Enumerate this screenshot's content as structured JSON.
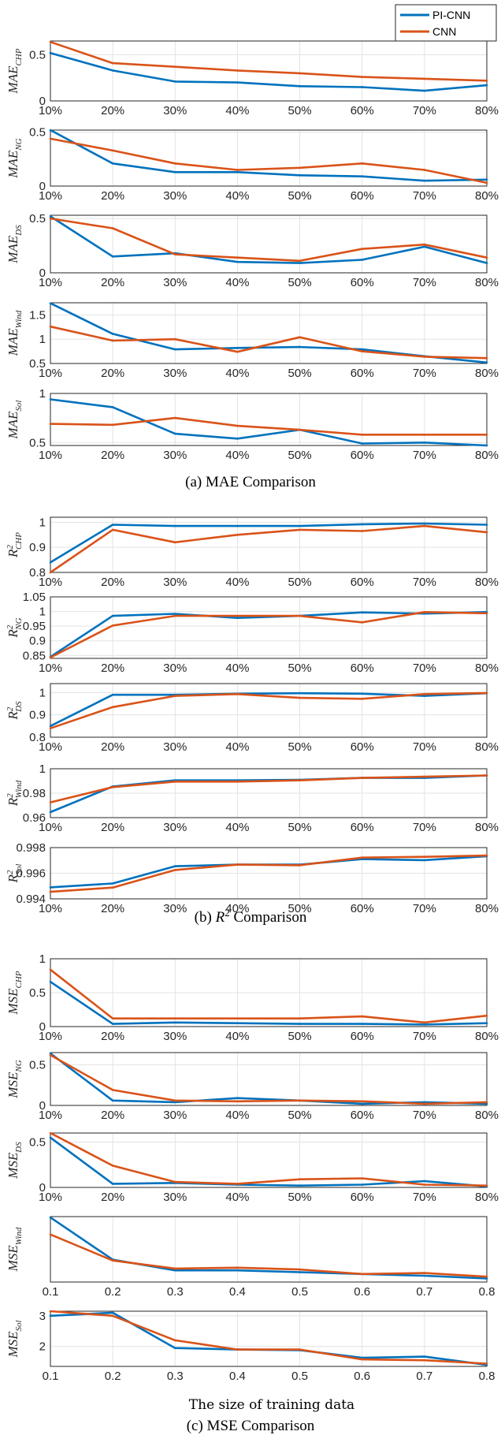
{
  "legend": {
    "entries": [
      {
        "name": "PI-CNN",
        "color": "#0072BD"
      },
      {
        "name": "CNN",
        "color": "#D95319"
      }
    ],
    "placement": "top-right"
  },
  "colors": {
    "pi_cnn": "#0072BD",
    "cnn": "#D95319",
    "grid": "#e3e3e3",
    "axis": "#262626"
  },
  "captions": {
    "mae": "(a) MAE Comparison",
    "r2_prefix": "(b) ",
    "r2_symbol": "R",
    "r2_sup": "2",
    "r2_suffix": " Comparison",
    "mse": "(c) MSE Comparison",
    "xlabel": "The size of training data"
  },
  "chart_data": [
    {
      "type": "line",
      "group": "mae",
      "ylabel": "MAE",
      "ylabel_sub": "CHP",
      "ylim": [
        0,
        0.65
      ],
      "yticks": [
        "0",
        "0.5"
      ],
      "ytick_vals": [
        0,
        0.5
      ],
      "grid": true,
      "x": [
        "10%",
        "20%",
        "30%",
        "40%",
        "50%",
        "60%",
        "70%",
        "80%"
      ],
      "series": [
        {
          "name": "PI-CNN",
          "values": [
            0.52,
            0.33,
            0.21,
            0.2,
            0.16,
            0.15,
            0.11,
            0.17
          ]
        },
        {
          "name": "CNN",
          "values": [
            0.64,
            0.41,
            0.37,
            0.33,
            0.3,
            0.26,
            0.24,
            0.22
          ]
        }
      ]
    },
    {
      "type": "line",
      "group": "mae",
      "ylabel": "MAE",
      "ylabel_sub": "NG",
      "ylim": [
        0,
        0.52
      ],
      "yticks": [
        "0",
        "0.5"
      ],
      "ytick_vals": [
        0,
        0.5
      ],
      "grid": true,
      "x": [
        "10%",
        "20%",
        "30%",
        "40%",
        "50%",
        "60%",
        "70%",
        "80%"
      ],
      "series": [
        {
          "name": "PI-CNN",
          "values": [
            0.52,
            0.21,
            0.13,
            0.13,
            0.1,
            0.09,
            0.05,
            0.06
          ]
        },
        {
          "name": "CNN",
          "values": [
            0.44,
            0.33,
            0.21,
            0.15,
            0.17,
            0.21,
            0.15,
            0.03
          ]
        }
      ]
    },
    {
      "type": "line",
      "group": "mae",
      "ylabel": "MAE",
      "ylabel_sub": "DS",
      "ylim": [
        0,
        0.53
      ],
      "yticks": [
        "0",
        "0.5"
      ],
      "ytick_vals": [
        0,
        0.5
      ],
      "grid": true,
      "x": [
        "10%",
        "20%",
        "30%",
        "40%",
        "50%",
        "60%",
        "70%",
        "80%"
      ],
      "series": [
        {
          "name": "PI-CNN",
          "values": [
            0.52,
            0.15,
            0.18,
            0.1,
            0.09,
            0.12,
            0.24,
            0.09
          ]
        },
        {
          "name": "CNN",
          "values": [
            0.5,
            0.41,
            0.17,
            0.14,
            0.11,
            0.22,
            0.26,
            0.14
          ]
        }
      ]
    },
    {
      "type": "line",
      "group": "mae",
      "ylabel": "MAE",
      "ylabel_sub": "Wind",
      "ylim": [
        0.5,
        1.75
      ],
      "yticks": [
        "0.5",
        "1",
        "1.5"
      ],
      "ytick_vals": [
        0.5,
        1,
        1.5
      ],
      "grid": true,
      "x": [
        "10%",
        "20%",
        "30%",
        "40%",
        "50%",
        "60%",
        "70%",
        "80%"
      ],
      "series": [
        {
          "name": "PI-CNN",
          "values": [
            1.74,
            1.11,
            0.79,
            0.82,
            0.84,
            0.79,
            0.65,
            0.52
          ]
        },
        {
          "name": "CNN",
          "values": [
            1.26,
            0.97,
            1.0,
            0.74,
            1.04,
            0.75,
            0.64,
            0.61
          ]
        }
      ]
    },
    {
      "type": "line",
      "group": "mae",
      "ylabel": "MAE",
      "ylabel_sub": "Sol",
      "ylim": [
        0.47,
        1.0
      ],
      "yticks": [
        "0.5",
        "1"
      ],
      "ytick_vals": [
        0.5,
        1
      ],
      "grid": true,
      "x": [
        "10%",
        "20%",
        "30%",
        "40%",
        "50%",
        "60%",
        "70%",
        "80%"
      ],
      "series": [
        {
          "name": "PI-CNN",
          "values": [
            0.94,
            0.86,
            0.59,
            0.54,
            0.63,
            0.49,
            0.5,
            0.47
          ]
        },
        {
          "name": "CNN",
          "values": [
            0.69,
            0.68,
            0.75,
            0.67,
            0.63,
            0.58,
            0.58,
            0.58
          ]
        }
      ]
    },
    {
      "type": "line",
      "group": "r2",
      "ylabel": "R",
      "ylabel_sup": "2",
      "ylabel_sub": "CHP",
      "ylim": [
        0.8,
        1.02
      ],
      "yticks": [
        "0.8",
        "0.9",
        "1"
      ],
      "ytick_vals": [
        0.8,
        0.9,
        1
      ],
      "grid": true,
      "x": [
        "10%",
        "20%",
        "30%",
        "40%",
        "50%",
        "60%",
        "70%",
        "80%"
      ],
      "series": [
        {
          "name": "PI-CNN",
          "values": [
            0.84,
            0.99,
            0.985,
            0.985,
            0.985,
            0.992,
            0.995,
            0.99
          ]
        },
        {
          "name": "CNN",
          "values": [
            0.8,
            0.97,
            0.92,
            0.95,
            0.97,
            0.965,
            0.985,
            0.96
          ]
        }
      ]
    },
    {
      "type": "line",
      "group": "r2",
      "ylabel": "R",
      "ylabel_sup": "2",
      "ylabel_sub": "NG",
      "ylim": [
        0.84,
        1.05
      ],
      "yticks": [
        "0.85",
        "0.9",
        "0.95",
        "1",
        "1.05"
      ],
      "ytick_vals": [
        0.85,
        0.9,
        0.95,
        1,
        1.05
      ],
      "grid": true,
      "x": [
        "10%",
        "20%",
        "30%",
        "40%",
        "50%",
        "60%",
        "70%",
        "80%"
      ],
      "series": [
        {
          "name": "PI-CNN",
          "values": [
            0.845,
            0.985,
            0.992,
            0.978,
            0.985,
            0.997,
            0.993,
            0.998
          ]
        },
        {
          "name": "CNN",
          "values": [
            0.843,
            0.952,
            0.985,
            0.985,
            0.985,
            0.963,
            0.998,
            0.994
          ]
        }
      ]
    },
    {
      "type": "line",
      "group": "r2",
      "ylabel": "R",
      "ylabel_sup": "2",
      "ylabel_sub": "DS",
      "ylim": [
        0.8,
        1.04
      ],
      "yticks": [
        "0.8",
        "0.9",
        "1"
      ],
      "ytick_vals": [
        0.8,
        0.9,
        1
      ],
      "grid": true,
      "x": [
        "10%",
        "20%",
        "30%",
        "40%",
        "50%",
        "60%",
        "70%",
        "80%"
      ],
      "series": [
        {
          "name": "PI-CNN",
          "values": [
            0.85,
            0.99,
            0.99,
            0.995,
            0.997,
            0.995,
            0.985,
            0.997
          ]
        },
        {
          "name": "CNN",
          "values": [
            0.84,
            0.935,
            0.985,
            0.993,
            0.976,
            0.972,
            0.993,
            0.998
          ]
        }
      ]
    },
    {
      "type": "line",
      "group": "r2",
      "ylabel": "R",
      "ylabel_sup": "2",
      "ylabel_sub": "Wind",
      "ylim": [
        0.96,
        1.0
      ],
      "yticks": [
        "0.96",
        "0.98",
        "1"
      ],
      "ytick_vals": [
        0.96,
        0.98,
        1
      ],
      "grid": true,
      "x": [
        "10%",
        "20%",
        "30%",
        "40%",
        "50%",
        "60%",
        "70%",
        "80%"
      ],
      "series": [
        {
          "name": "PI-CNN",
          "values": [
            0.9645,
            0.9855,
            0.9905,
            0.9905,
            0.991,
            0.9925,
            0.9925,
            0.9945
          ]
        },
        {
          "name": "CNN",
          "values": [
            0.9725,
            0.985,
            0.9895,
            0.9895,
            0.9905,
            0.9925,
            0.9935,
            0.9945
          ]
        }
      ]
    },
    {
      "type": "line",
      "group": "r2",
      "ylabel": "R",
      "ylabel_sup": "2",
      "ylabel_sub": "Sol",
      "ylim": [
        0.994,
        0.998
      ],
      "yticks": [
        "0.994",
        "0.996",
        "0.998"
      ],
      "ytick_vals": [
        0.994,
        0.996,
        0.998
      ],
      "grid": true,
      "x": [
        "10%",
        "20%",
        "30%",
        "40%",
        "50%",
        "60%",
        "70%",
        "80%"
      ],
      "series": [
        {
          "name": "PI-CNN",
          "values": [
            0.9949,
            0.9952,
            0.99655,
            0.99667,
            0.99667,
            0.9971,
            0.99702,
            0.99733
          ]
        },
        {
          "name": "CNN",
          "values": [
            0.99455,
            0.99488,
            0.99625,
            0.99667,
            0.99662,
            0.99722,
            0.99728,
            0.99738
          ]
        }
      ]
    },
    {
      "type": "line",
      "group": "mse",
      "ylabel": "MSE",
      "ylabel_sub": "CHP",
      "ylim": [
        0,
        1
      ],
      "yticks": [
        "0",
        "0.5",
        "1"
      ],
      "ytick_vals": [
        0,
        0.5,
        1
      ],
      "grid": true,
      "x": [
        "10%",
        "20%",
        "30%",
        "40%",
        "50%",
        "60%",
        "70%",
        "80%"
      ],
      "series": [
        {
          "name": "PI-CNN",
          "values": [
            0.66,
            0.04,
            0.06,
            0.05,
            0.04,
            0.04,
            0.03,
            0.05
          ]
        },
        {
          "name": "CNN",
          "values": [
            0.84,
            0.12,
            0.12,
            0.12,
            0.12,
            0.15,
            0.06,
            0.16
          ]
        }
      ]
    },
    {
      "type": "line",
      "group": "mse",
      "ylabel": "MSE",
      "ylabel_sub": "NG",
      "ylim": [
        0,
        0.65
      ],
      "yticks": [
        "0",
        "0.5"
      ],
      "ytick_vals": [
        0,
        0.5
      ],
      "grid": true,
      "x": [
        "10%",
        "20%",
        "30%",
        "40%",
        "50%",
        "60%",
        "70%",
        "80%"
      ],
      "series": [
        {
          "name": "PI-CNN",
          "values": [
            0.64,
            0.06,
            0.04,
            0.09,
            0.06,
            0.02,
            0.04,
            0.02
          ]
        },
        {
          "name": "CNN",
          "values": [
            0.62,
            0.19,
            0.06,
            0.05,
            0.06,
            0.05,
            0.02,
            0.04
          ]
        }
      ]
    },
    {
      "type": "line",
      "group": "mse",
      "ylabel": "MSE",
      "ylabel_sub": "DS",
      "ylim": [
        0,
        0.6
      ],
      "yticks": [
        "0",
        "0.5"
      ],
      "ytick_vals": [
        0,
        0.5
      ],
      "grid": true,
      "x": [
        "10%",
        "20%",
        "30%",
        "40%",
        "50%",
        "60%",
        "70%",
        "80%"
      ],
      "series": [
        {
          "name": "PI-CNN",
          "values": [
            0.55,
            0.04,
            0.05,
            0.03,
            0.02,
            0.03,
            0.07,
            0.01
          ]
        },
        {
          "name": "CNN",
          "values": [
            0.6,
            0.24,
            0.06,
            0.04,
            0.09,
            0.1,
            0.03,
            0.02
          ]
        }
      ]
    },
    {
      "type": "line",
      "group": "mse",
      "ylabel": "MSE",
      "ylabel_sub": "Wind",
      "ylim": [
        0.9,
        8.2
      ],
      "yticks": [],
      "ytick_vals": [],
      "grid": true,
      "x": [
        "0.1",
        "0.2",
        "0.3",
        "0.4",
        "0.5",
        "0.6",
        "0.7",
        "0.8"
      ],
      "series": [
        {
          "name": "PI-CNN",
          "values": [
            8.1,
            3.4,
            2.2,
            2.2,
            2.0,
            1.8,
            1.6,
            1.3
          ]
        },
        {
          "name": "CNN",
          "values": [
            6.2,
            3.3,
            2.4,
            2.5,
            2.3,
            1.8,
            1.9,
            1.5
          ]
        }
      ]
    },
    {
      "type": "line",
      "group": "mse",
      "ylabel": "MSE",
      "ylabel_sub": "Sol",
      "ylim": [
        1.35,
        3.15
      ],
      "yticks": [
        "2",
        "3"
      ],
      "ytick_vals": [
        2,
        3
      ],
      "grid": true,
      "x": [
        "0.1",
        "0.2",
        "0.3",
        "0.4",
        "0.5",
        "0.6",
        "0.7",
        "0.8"
      ],
      "series": [
        {
          "name": "PI-CNN",
          "values": [
            3.0,
            3.1,
            1.95,
            1.9,
            1.88,
            1.63,
            1.67,
            1.4
          ]
        },
        {
          "name": "CNN",
          "values": [
            3.15,
            3.0,
            2.2,
            1.9,
            1.9,
            1.58,
            1.55,
            1.44
          ]
        }
      ]
    }
  ]
}
